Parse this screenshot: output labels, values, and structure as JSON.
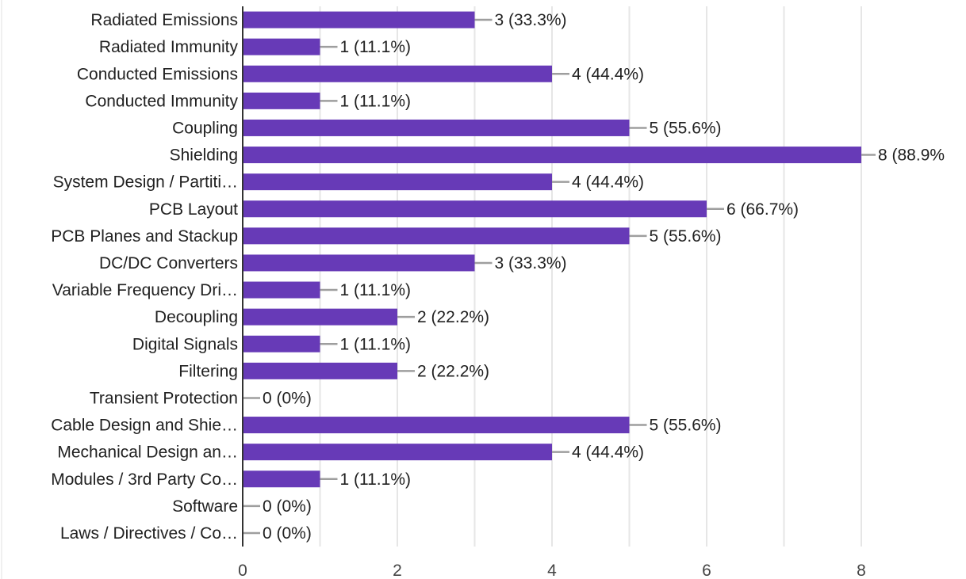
{
  "chart_data": {
    "type": "bar",
    "orientation": "horizontal",
    "categories": [
      "Radiated Emissions",
      "Radiated Immunity",
      "Conducted Emissions",
      "Conducted Immunity",
      "Coupling",
      "Shielding",
      "System Design / Partiti…",
      "PCB Layout",
      "PCB Planes and Stackup",
      "DC/DC Converters",
      "Variable Frequency Dri…",
      "Decoupling",
      "Digital Signals",
      "Filtering",
      "Transient Protection",
      "Cable Design and Shie…",
      "Mechanical Design an…",
      "Modules / 3rd Party Co…",
      "Software",
      "Laws / Directives / Co…"
    ],
    "values": [
      3,
      1,
      4,
      1,
      5,
      8,
      4,
      6,
      5,
      3,
      1,
      2,
      1,
      2,
      0,
      5,
      4,
      1,
      0,
      0
    ],
    "data_labels": [
      "3 (33.3%)",
      "1 (11.1%)",
      "4 (44.4%)",
      "1 (11.1%)",
      "5 (55.6%)",
      "8 (88.9%",
      "4 (44.4%)",
      "6 (66.7%)",
      "5 (55.6%)",
      "3 (33.3%)",
      "1 (11.1%)",
      "2 (22.2%)",
      "1 (11.1%)",
      "2 (22.2%)",
      "0 (0%)",
      "5 (55.6%)",
      "4 (44.4%)",
      "1 (11.1%)",
      "0 (0%)",
      "0 (0%)"
    ],
    "x_ticks": [
      "0",
      "2",
      "4",
      "6",
      "8"
    ],
    "xlim": [
      0,
      8
    ],
    "grid": true,
    "colors": {
      "bar": "#673ab7",
      "grid": "#e6e6e6",
      "leader": "#9e9e9e",
      "axis": "#333333"
    }
  }
}
